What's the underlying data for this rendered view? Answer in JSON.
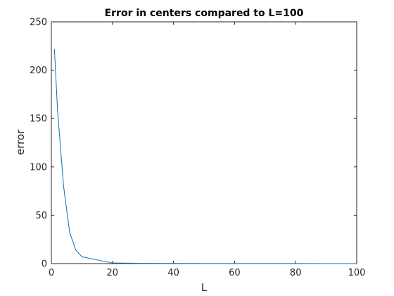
{
  "chart_data": {
    "type": "line",
    "title": "Error in centers compared to L=100",
    "xlabel": "L",
    "ylabel": "error",
    "xlim": [
      0,
      100
    ],
    "ylim": [
      0,
      250
    ],
    "xticks": [
      0,
      20,
      40,
      60,
      80,
      100
    ],
    "yticks": [
      0,
      50,
      100,
      150,
      200,
      250
    ],
    "grid": false,
    "series": [
      {
        "color": "#0072BD",
        "x": [
          1,
          2,
          4,
          6,
          8,
          10,
          20,
          30,
          40,
          50,
          60,
          70,
          80,
          90,
          100
        ],
        "y": [
          222,
          160,
          80,
          32,
          14,
          7,
          0.6,
          0.3,
          0.2,
          0.1,
          0.1,
          0.05,
          0.05,
          0.02,
          0
        ]
      }
    ]
  }
}
